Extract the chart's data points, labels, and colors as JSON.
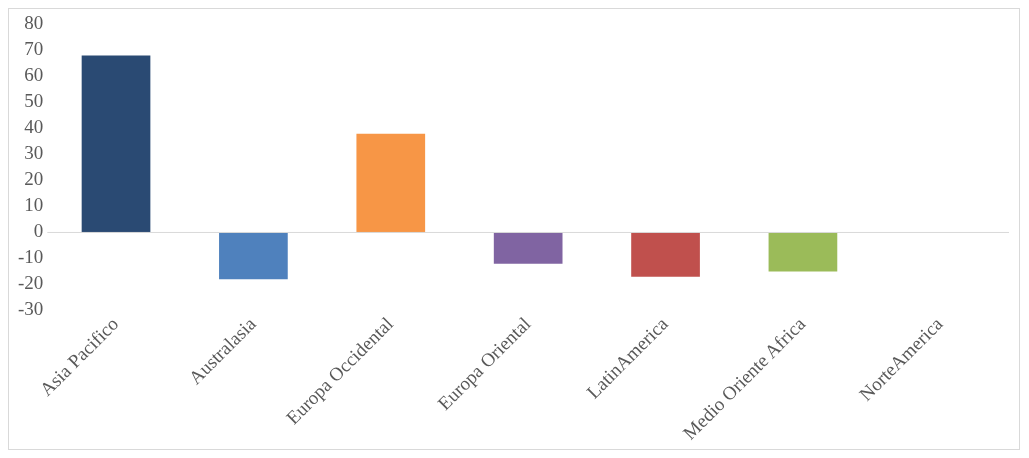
{
  "chart_data": {
    "type": "bar",
    "categories": [
      "Asia Pacifico",
      "Australasia",
      "Europa Occidental",
      "Europa Oriental",
      "LatinAmerica",
      "Medio Oriente Africa",
      "NorteAmerica"
    ],
    "values": [
      68,
      -18,
      38,
      -12,
      -17,
      -15,
      0
    ],
    "colors": [
      "#2a4a73",
      "#4f81bd",
      "#f79646",
      "#8064a2",
      "#c0504d",
      "#9bbb59",
      "#4bacc6"
    ],
    "ylim": [
      -30,
      80
    ],
    "yticks": [
      -30,
      -20,
      -10,
      0,
      10,
      20,
      30,
      40,
      50,
      60,
      70,
      80
    ],
    "ref_lines": [
      {
        "axis": "y",
        "value": 0,
        "color": "#d9d9d9"
      }
    ],
    "grid": false,
    "legend": false
  }
}
